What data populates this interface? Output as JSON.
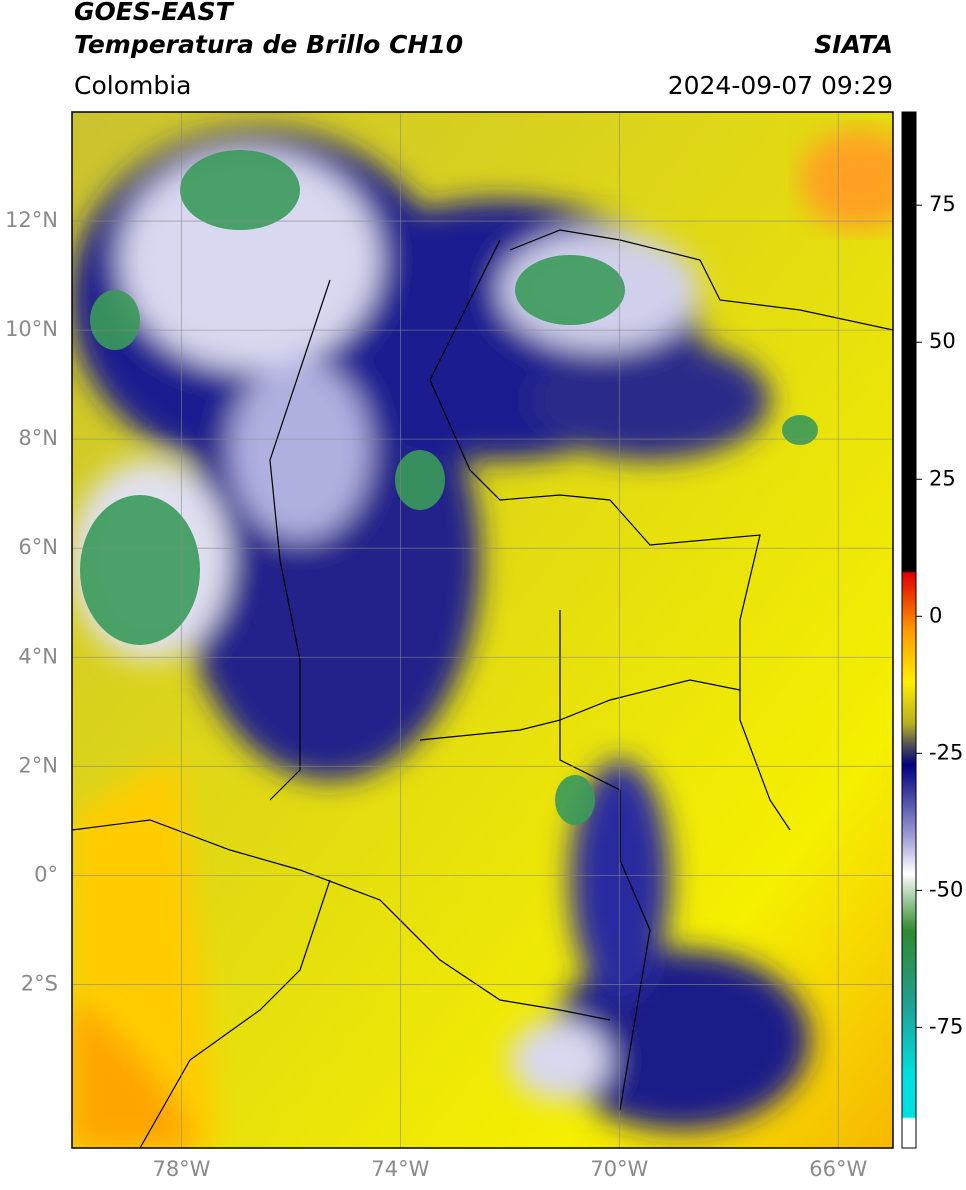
{
  "header": {
    "title": "GOES-EAST",
    "subtitle": "Temperatura de Brillo CH10",
    "source": "SIATA",
    "region": "Colombia",
    "datetime": "2024-09-07 09:29"
  },
  "map": {
    "xlim": [
      -80,
      -65
    ],
    "ylim": [
      -5,
      14
    ],
    "xticks": [
      {
        "value": -78,
        "label": "78°W"
      },
      {
        "value": -74,
        "label": "74°W"
      },
      {
        "value": -70,
        "label": "70°W"
      },
      {
        "value": -66,
        "label": "66°W"
      }
    ],
    "yticks": [
      {
        "value": 12,
        "label": "12°N"
      },
      {
        "value": 10,
        "label": "10°N"
      },
      {
        "value": 8,
        "label": "8°N"
      },
      {
        "value": 6,
        "label": "6°N"
      },
      {
        "value": 4,
        "label": "4°N"
      },
      {
        "value": 2,
        "label": "2°N"
      },
      {
        "value": 0,
        "label": "0°"
      },
      {
        "value": -2,
        "label": "2°S"
      }
    ]
  },
  "colorbar": {
    "clim": [
      -97,
      92
    ],
    "ticks": [
      75,
      50,
      25,
      0,
      -25,
      -50,
      -75
    ]
  }
}
